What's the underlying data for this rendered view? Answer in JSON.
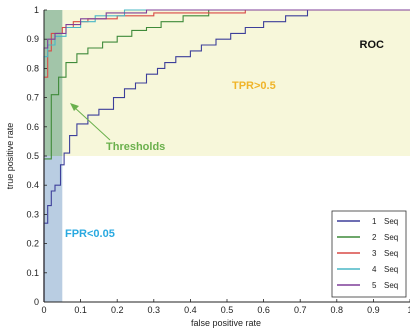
{
  "chart_data": {
    "type": "line",
    "title": "",
    "xlabel": "false positive rate",
    "ylabel": "true positive rate",
    "xlim": [
      0,
      1
    ],
    "ylim": [
      0,
      1
    ],
    "xticks": [
      "0",
      "0.1",
      "0.2",
      "0.3",
      "0.4",
      "0.5",
      "0.6",
      "0.7",
      "0.8",
      "0.9",
      "1"
    ],
    "yticks": [
      "0",
      "0.1",
      "0.2",
      "0.3",
      "0.4",
      "0.5",
      "0.6",
      "0.7",
      "0.8",
      "0.9",
      "1"
    ],
    "grid": false,
    "legend_position": "bottom-right",
    "series": [
      {
        "name": "1",
        "suffix": "Seq",
        "color": "#3d3f9a",
        "points": [
          [
            0,
            0
          ],
          [
            0,
            0.27
          ],
          [
            0.01,
            0.27
          ],
          [
            0.01,
            0.33
          ],
          [
            0.02,
            0.33
          ],
          [
            0.02,
            0.38
          ],
          [
            0.03,
            0.38
          ],
          [
            0.03,
            0.4
          ],
          [
            0.045,
            0.4
          ],
          [
            0.045,
            0.47
          ],
          [
            0.055,
            0.47
          ],
          [
            0.055,
            0.51
          ],
          [
            0.07,
            0.51
          ],
          [
            0.07,
            0.57
          ],
          [
            0.09,
            0.57
          ],
          [
            0.09,
            0.61
          ],
          [
            0.12,
            0.61
          ],
          [
            0.12,
            0.64
          ],
          [
            0.15,
            0.64
          ],
          [
            0.15,
            0.66
          ],
          [
            0.19,
            0.66
          ],
          [
            0.19,
            0.7
          ],
          [
            0.22,
            0.7
          ],
          [
            0.22,
            0.73
          ],
          [
            0.25,
            0.73
          ],
          [
            0.25,
            0.75
          ],
          [
            0.28,
            0.75
          ],
          [
            0.28,
            0.78
          ],
          [
            0.31,
            0.78
          ],
          [
            0.31,
            0.8
          ],
          [
            0.33,
            0.8
          ],
          [
            0.33,
            0.82
          ],
          [
            0.36,
            0.82
          ],
          [
            0.36,
            0.84
          ],
          [
            0.4,
            0.84
          ],
          [
            0.4,
            0.86
          ],
          [
            0.43,
            0.86
          ],
          [
            0.43,
            0.88
          ],
          [
            0.47,
            0.88
          ],
          [
            0.47,
            0.9
          ],
          [
            0.51,
            0.9
          ],
          [
            0.51,
            0.92
          ],
          [
            0.55,
            0.92
          ],
          [
            0.55,
            0.94
          ],
          [
            0.6,
            0.94
          ],
          [
            0.6,
            0.96
          ],
          [
            0.66,
            0.96
          ],
          [
            0.66,
            0.98
          ],
          [
            0.72,
            0.98
          ],
          [
            0.72,
            1.0
          ],
          [
            1,
            1.0
          ]
        ]
      },
      {
        "name": "2",
        "suffix": "Seq",
        "color": "#3f8a3a",
        "points": [
          [
            0,
            0
          ],
          [
            0,
            0.49
          ],
          [
            0.02,
            0.49
          ],
          [
            0.02,
            0.71
          ],
          [
            0.04,
            0.71
          ],
          [
            0.04,
            0.77
          ],
          [
            0.06,
            0.77
          ],
          [
            0.06,
            0.82
          ],
          [
            0.09,
            0.82
          ],
          [
            0.09,
            0.85
          ],
          [
            0.12,
            0.85
          ],
          [
            0.12,
            0.87
          ],
          [
            0.16,
            0.87
          ],
          [
            0.16,
            0.89
          ],
          [
            0.2,
            0.89
          ],
          [
            0.2,
            0.91
          ],
          [
            0.24,
            0.91
          ],
          [
            0.24,
            0.93
          ],
          [
            0.28,
            0.93
          ],
          [
            0.28,
            0.94
          ],
          [
            0.32,
            0.94
          ],
          [
            0.32,
            0.96
          ],
          [
            0.38,
            0.96
          ],
          [
            0.38,
            0.98
          ],
          [
            0.45,
            0.98
          ],
          [
            0.45,
            1.0
          ],
          [
            1,
            1.0
          ]
        ]
      },
      {
        "name": "3",
        "suffix": "Seq",
        "color": "#d84a46",
        "points": [
          [
            0,
            0
          ],
          [
            0,
            0.77
          ],
          [
            0.01,
            0.77
          ],
          [
            0.01,
            0.86
          ],
          [
            0.02,
            0.86
          ],
          [
            0.02,
            0.92
          ],
          [
            0.05,
            0.92
          ],
          [
            0.05,
            0.94
          ],
          [
            0.08,
            0.94
          ],
          [
            0.08,
            0.96
          ],
          [
            0.12,
            0.96
          ],
          [
            0.12,
            0.97
          ],
          [
            0.2,
            0.97
          ],
          [
            0.2,
            0.98
          ],
          [
            0.3,
            0.98
          ],
          [
            0.3,
            0.99
          ],
          [
            0.55,
            0.99
          ],
          [
            0.55,
            1.0
          ],
          [
            1,
            1.0
          ]
        ]
      },
      {
        "name": "4",
        "suffix": "Seq",
        "color": "#4ab7c6",
        "points": [
          [
            0,
            0
          ],
          [
            0,
            0.84
          ],
          [
            0.01,
            0.84
          ],
          [
            0.01,
            0.88
          ],
          [
            0.03,
            0.88
          ],
          [
            0.03,
            0.91
          ],
          [
            0.06,
            0.91
          ],
          [
            0.06,
            0.94
          ],
          [
            0.1,
            0.94
          ],
          [
            0.1,
            0.96
          ],
          [
            0.14,
            0.96
          ],
          [
            0.14,
            0.98
          ],
          [
            0.22,
            0.98
          ],
          [
            0.22,
            1.0
          ],
          [
            1,
            1.0
          ]
        ]
      },
      {
        "name": "5",
        "suffix": "Seq",
        "color": "#7f3f98",
        "points": [
          [
            0,
            0
          ],
          [
            0,
            0.87
          ],
          [
            0.01,
            0.87
          ],
          [
            0.01,
            0.9
          ],
          [
            0.03,
            0.9
          ],
          [
            0.03,
            0.92
          ],
          [
            0.06,
            0.92
          ],
          [
            0.06,
            0.95
          ],
          [
            0.1,
            0.95
          ],
          [
            0.1,
            0.97
          ],
          [
            0.17,
            0.97
          ],
          [
            0.17,
            0.99
          ],
          [
            0.28,
            0.99
          ],
          [
            0.28,
            1.0
          ],
          [
            1,
            1.0
          ]
        ]
      }
    ],
    "annotations": {
      "roc": "ROC",
      "tpr": "TPR>0.5",
      "thresholds": "Thresholds",
      "fpr": "FPR<0.05"
    },
    "regions": {
      "tpr_threshold": 0.5,
      "fpr_threshold": 0.05,
      "tpr_color": "#f7f7da",
      "fpr_color": "#b9cde2",
      "overlap_color": "#8fc07a"
    },
    "colors": {
      "tpr_text": "#f0b429",
      "thresholds_text": "#6ab04c",
      "fpr_text": "#29a9e0",
      "arrow": "#6ab04c"
    }
  }
}
